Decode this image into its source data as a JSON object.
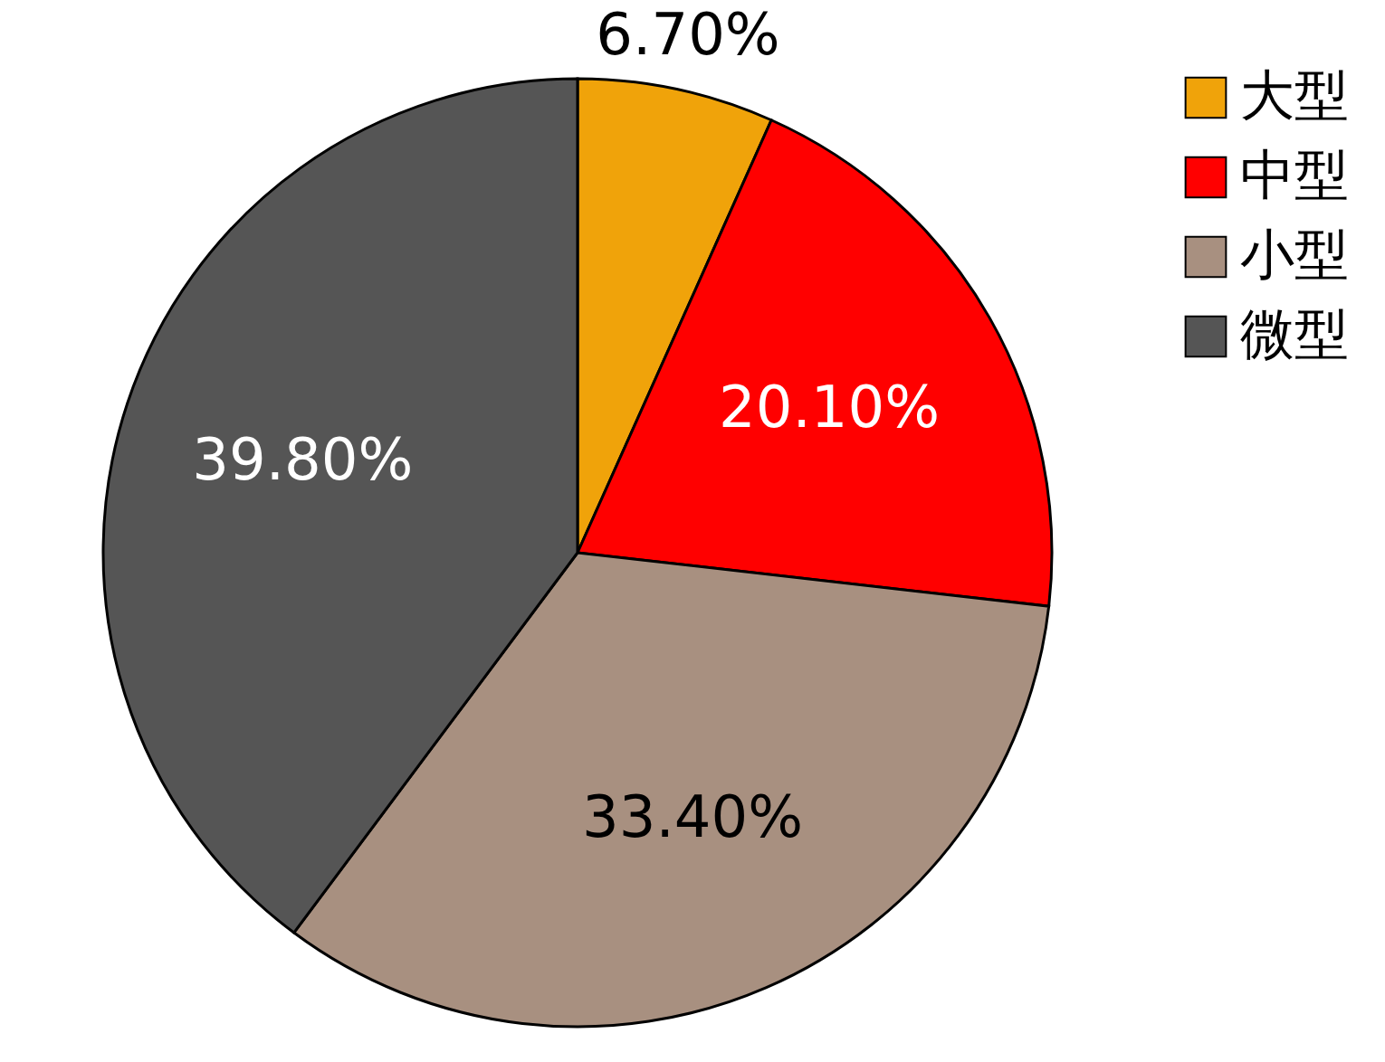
{
  "chart_data": {
    "type": "pie",
    "categories": [
      "大型",
      "中型",
      "小型",
      "微型"
    ],
    "values": [
      6.7,
      20.1,
      33.4,
      39.8
    ],
    "value_labels": [
      "6.70%",
      "20.10%",
      "33.40%",
      "39.80%"
    ],
    "colors": [
      "#f0a30a",
      "#ff0000",
      "#a89080",
      "#555555"
    ],
    "legend": "right"
  }
}
